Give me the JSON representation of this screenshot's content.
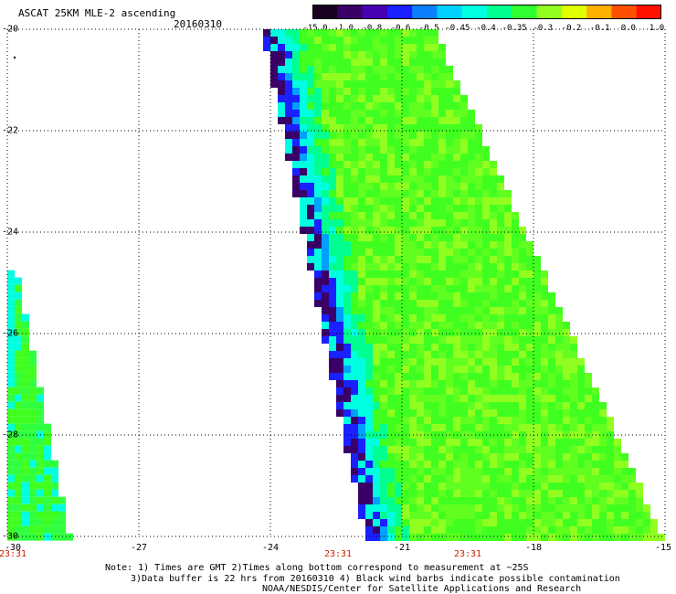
{
  "header": {
    "title": "ASCAT 25KM MLE-2 ascending",
    "date": "20160310"
  },
  "colorbar": {
    "labels": [
      "-15.0",
      "-1.0",
      "-0.8",
      "-0.6",
      "-0.5",
      "-0.45",
      "-0.4",
      "-0.35",
      "-0.3",
      "-0.2",
      "-0.1",
      "0.0",
      "1.0"
    ],
    "colors": [
      "#1a0020",
      "#3a0068",
      "#4800b0",
      "#1a20ff",
      "#0a80ff",
      "#00d0ff",
      "#00ffe0",
      "#00ff90",
      "#30ff30",
      "#90ff20",
      "#e0ff00",
      "#ffb000",
      "#ff5000",
      "#ff1000"
    ]
  },
  "map": {
    "lat_labels": [
      "-20",
      "-22",
      "-24",
      "-26",
      "-28",
      "-30"
    ],
    "lon_labels": [
      "-30",
      "-27",
      "-24",
      "-21",
      "-18",
      "-15"
    ],
    "time_labels": [
      "23:31",
      "23:31",
      "23:31"
    ],
    "lat_range": [
      -30,
      -20
    ],
    "lon_range": [
      -30,
      -15
    ],
    "swaths": [
      {
        "name": "left-swath-edge",
        "lat_top": -24.75,
        "lon_top_left": -30,
        "lon_top_right": -29.85,
        "lat_bottom": -30,
        "lon_bottom_left": -30,
        "lon_bottom_right": -28.65
      },
      {
        "name": "main-swath",
        "lat_top": -20,
        "lon_top_left": -24.1,
        "lon_top_right": -20.3,
        "lat_bottom": -30,
        "lon_bottom_left": -21.75,
        "lon_bottom_right": -15.1
      }
    ],
    "colors": {
      "land": "#ffffff",
      "grid": "#000000",
      "edge_dark": "#3a0068",
      "edge_blue": "#1a20ff",
      "edge_cyan": "#00ffe0",
      "body_green": "#40ff20",
      "body_yellowgreen": "#90ff20"
    }
  },
  "notes": {
    "line1": "Note: 1) Times are GMT 2)Times along bottom correspond to measurement at ~25S",
    "line2": "3)Data buffer is 22 hrs from 20160310 4) Black wind barbs indicate possible contamination",
    "line3": "NOAA/NESDIS/Center for Satellite Applications and Research"
  }
}
